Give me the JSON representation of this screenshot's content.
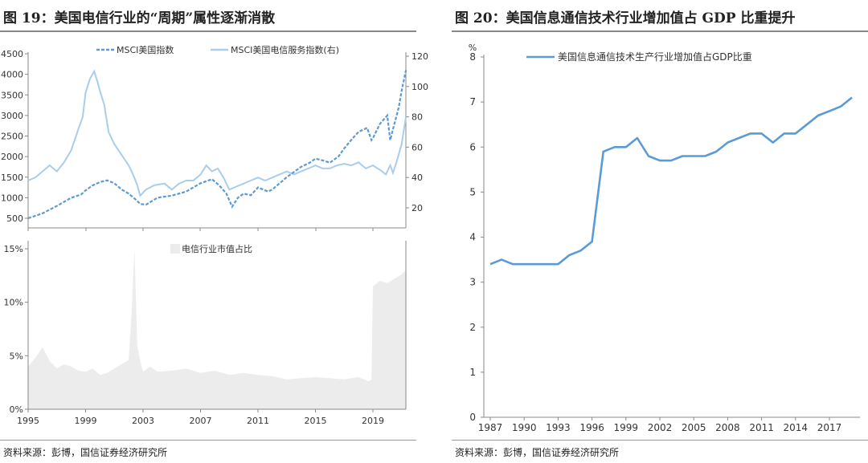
{
  "left_panel": {
    "title": "图 19：美国电信行业的“周期”属性逐渐消散",
    "source": "资料来源：彭博，国信证券经济研究所"
  },
  "right_panel": {
    "title": "图 20：美国信息通信技术行业增加值占 GDP 比重提升",
    "source": "资料来源：彭博，国信证券经济研究所"
  },
  "colors": {
    "msci_us": "#5b9bd5",
    "msci_telecom": "#a9cdec",
    "telecom_weight": "#ececec",
    "ict_share": "#5b9bd5",
    "axis": "#888888"
  },
  "chart_data": [
    {
      "id": "top-left",
      "type": "line",
      "grid": false,
      "legend_placement": "top-center",
      "x_ticks": [
        "1995",
        "1999",
        "2003",
        "2007",
        "2011",
        "2015",
        "2019"
      ],
      "xlim": [
        1995,
        2021.4
      ],
      "y_left": {
        "ticks": [
          "4500",
          "4000",
          "3500",
          "3000",
          "2500",
          "2000",
          "1500",
          "1000",
          "500"
        ],
        "ylim": [
          500,
          4500
        ]
      },
      "y_right": {
        "ticks": [
          "120",
          "100",
          "80",
          "60",
          "40",
          "20"
        ],
        "ylim": [
          10,
          120
        ]
      },
      "series": [
        {
          "name": "MSCI美国指数",
          "axis": "left",
          "style": "dashed",
          "x": [
            1995.0,
            1996.0,
            1997.0,
            1998.0,
            1998.7,
            1999.0,
            1999.5,
            2000.0,
            2000.5,
            2001.0,
            2001.5,
            2002.0,
            2002.5,
            2002.8,
            2003.2,
            2004.0,
            2005.0,
            2006.0,
            2007.0,
            2007.8,
            2008.3,
            2008.8,
            2009.2,
            2009.6,
            2010.0,
            2010.5,
            2011.0,
            2011.7,
            2012.0,
            2013.0,
            2014.0,
            2014.6,
            2015.0,
            2015.6,
            2016.0,
            2016.6,
            2017.0,
            2017.6,
            2018.0,
            2018.6,
            2018.9,
            2019.0,
            2019.5,
            2020.0,
            2020.2,
            2020.5,
            2020.8,
            2021.0,
            2021.3
          ],
          "y": [
            500,
            620,
            800,
            1000,
            1080,
            1180,
            1300,
            1380,
            1420,
            1350,
            1200,
            1100,
            950,
            850,
            830,
            1000,
            1050,
            1150,
            1350,
            1450,
            1300,
            1100,
            780,
            1000,
            1100,
            1060,
            1250,
            1150,
            1200,
            1500,
            1750,
            1850,
            1950,
            1900,
            1850,
            2000,
            2200,
            2450,
            2600,
            2700,
            2400,
            2450,
            2800,
            3000,
            2400,
            2800,
            3200,
            3600,
            4100
          ]
        },
        {
          "name": "MSCI美国电信服务指数(右)",
          "axis": "right",
          "style": "solid",
          "x": [
            1995.0,
            1995.5,
            1996.0,
            1996.5,
            1997.0,
            1997.5,
            1998.0,
            1998.5,
            1998.8,
            1999.0,
            1999.3,
            1999.6,
            1999.8,
            2000.0,
            2000.3,
            2000.6,
            2001.0,
            2001.5,
            2002.0,
            2002.3,
            2002.6,
            2002.8,
            2003.2,
            2003.8,
            2004.5,
            2005.0,
            2005.5,
            2006.0,
            2006.5,
            2007.0,
            2007.4,
            2007.8,
            2008.2,
            2008.6,
            2009.0,
            2009.5,
            2010.0,
            2010.5,
            2011.0,
            2011.5,
            2012.0,
            2012.5,
            2013.0,
            2013.5,
            2014.0,
            2014.5,
            2015.0,
            2015.5,
            2016.0,
            2016.5,
            2017.0,
            2017.5,
            2018.0,
            2018.5,
            2019.0,
            2019.5,
            2019.9,
            2020.2,
            2020.4,
            2020.7,
            2021.0,
            2021.3
          ],
          "y": [
            38,
            40,
            44,
            48,
            44,
            50,
            58,
            72,
            80,
            96,
            105,
            110,
            104,
            97,
            88,
            70,
            62,
            55,
            48,
            42,
            35,
            28,
            32,
            35,
            36,
            32,
            36,
            38,
            38,
            42,
            48,
            44,
            46,
            40,
            32,
            34,
            36,
            38,
            40,
            38,
            40,
            42,
            44,
            42,
            44,
            46,
            48,
            46,
            46,
            48,
            49,
            48,
            50,
            46,
            48,
            45,
            42,
            48,
            43,
            52,
            62,
            80
          ]
        }
      ]
    },
    {
      "id": "bottom-left",
      "type": "area",
      "grid": false,
      "legend_placement": "top-center",
      "x_ticks": [
        "1995",
        "1999",
        "2003",
        "2007",
        "2011",
        "2015",
        "2019"
      ],
      "xlim": [
        1995,
        2021.4
      ],
      "y_ticks": [
        "15%",
        "10%",
        "5%",
        "0%"
      ],
      "ylim": [
        0,
        15
      ],
      "series": [
        {
          "name": "电信行业市值占比",
          "x": [
            1995.0,
            1995.5,
            1996.0,
            1996.5,
            1997.0,
            1997.5,
            1998.0,
            1998.5,
            1999.0,
            1999.5,
            2000.0,
            2000.5,
            2001.0,
            2001.5,
            2002.0,
            2002.2,
            2002.4,
            2002.6,
            2002.8,
            2003.0,
            2003.5,
            2004.0,
            2005.0,
            2006.0,
            2007.0,
            2008.0,
            2009.0,
            2010.0,
            2011.0,
            2012.0,
            2013.0,
            2014.0,
            2015.0,
            2016.0,
            2017.0,
            2018.0,
            2018.7,
            2018.9,
            2019.0,
            2019.5,
            2020.0,
            2020.5,
            2021.0,
            2021.3
          ],
          "y": [
            4.0,
            4.8,
            5.8,
            4.5,
            3.8,
            4.2,
            4.0,
            3.6,
            3.5,
            3.8,
            3.2,
            3.4,
            3.8,
            4.2,
            4.6,
            9.0,
            15.0,
            6.0,
            4.5,
            3.5,
            4.0,
            3.5,
            3.6,
            3.8,
            3.4,
            3.6,
            3.2,
            3.4,
            3.2,
            3.1,
            2.8,
            2.9,
            3.0,
            2.9,
            2.8,
            3.0,
            2.6,
            2.8,
            11.5,
            12.0,
            11.8,
            12.2,
            12.6,
            13.0
          ]
        }
      ]
    },
    {
      "id": "right",
      "type": "line",
      "grid": false,
      "legend_placement": "top-left",
      "x_ticks": [
        "1987",
        "1990",
        "1993",
        "1996",
        "1999",
        "2002",
        "2005",
        "2008",
        "2011",
        "2014",
        "2017"
      ],
      "xlim": [
        1986.5,
        2020.2
      ],
      "y_unit": "%",
      "y_ticks": [
        "8",
        "7",
        "6",
        "5",
        "4",
        "3",
        "2",
        "1",
        "0"
      ],
      "ylim": [
        0,
        8
      ],
      "series": [
        {
          "name": "美国信息通信技术生产行业增加值占GDP比重",
          "x": [
            1987,
            1988,
            1989,
            1990,
            1991,
            1992,
            1993,
            1994,
            1995,
            1996,
            1997,
            1998,
            1999,
            2000,
            2001,
            2002,
            2003,
            2004,
            2005,
            2006,
            2007,
            2008,
            2009,
            2010,
            2011,
            2012,
            2013,
            2014,
            2015,
            2016,
            2017,
            2018,
            2019
          ],
          "y": [
            3.4,
            3.5,
            3.4,
            3.4,
            3.4,
            3.4,
            3.4,
            3.6,
            3.7,
            3.9,
            5.9,
            6.0,
            6.0,
            6.2,
            5.8,
            5.7,
            5.7,
            5.8,
            5.8,
            5.8,
            5.9,
            6.1,
            6.2,
            6.3,
            6.3,
            6.1,
            6.3,
            6.3,
            6.5,
            6.7,
            6.8,
            6.9,
            7.1
          ]
        }
      ]
    }
  ]
}
